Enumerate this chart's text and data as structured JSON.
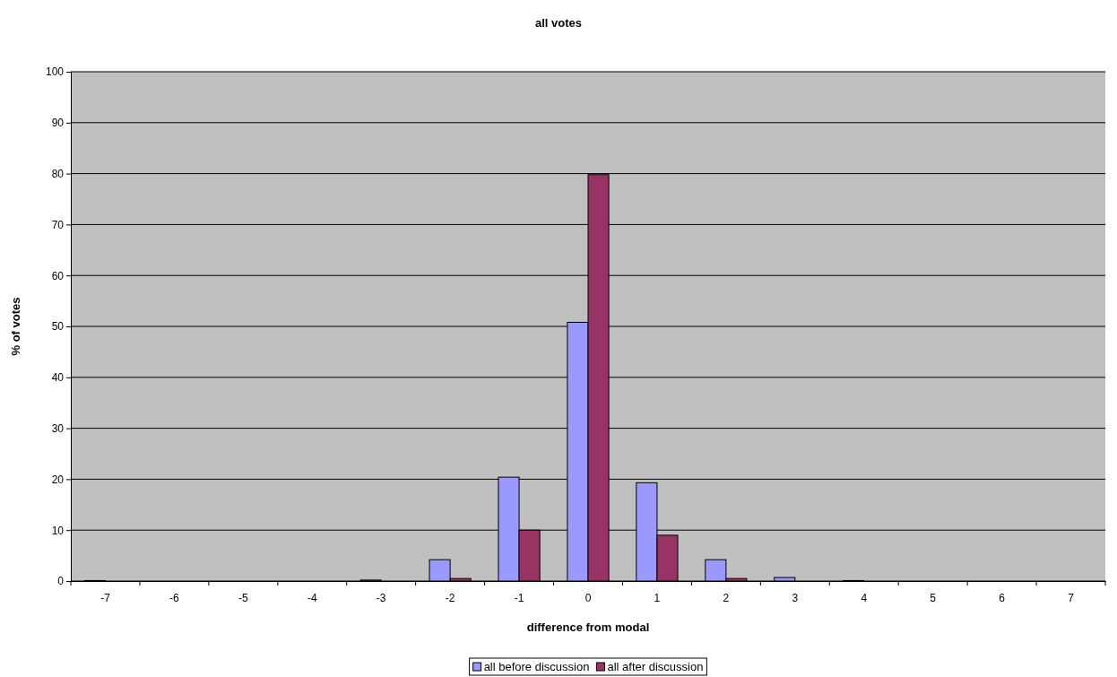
{
  "chart_data": {
    "type": "bar",
    "title": "all votes",
    "xlabel": "difference from modal",
    "ylabel": "% of votes",
    "categories": [
      "-7",
      "-6",
      "-5",
      "-4",
      "-3",
      "-2",
      "-1",
      "0",
      "1",
      "2",
      "3",
      "4",
      "5",
      "6",
      "7"
    ],
    "series": [
      {
        "name": "all before discussion",
        "color": "#9999ff",
        "values": [
          0.1,
          0,
          0,
          0,
          0.2,
          4.2,
          20.4,
          50.8,
          19.3,
          4.2,
          0.7,
          0.1,
          0,
          0,
          0
        ]
      },
      {
        "name": "all after discussion",
        "color": "#993366",
        "values": [
          0,
          0,
          0,
          0,
          0,
          0.5,
          10,
          79.8,
          9,
          0.5,
          0,
          0,
          0,
          0,
          0
        ]
      }
    ],
    "ylim": [
      0,
      100
    ],
    "yticks": [
      0,
      10,
      20,
      30,
      40,
      50,
      60,
      70,
      80,
      90,
      100
    ],
    "grid": "y",
    "legend": "bottom"
  }
}
